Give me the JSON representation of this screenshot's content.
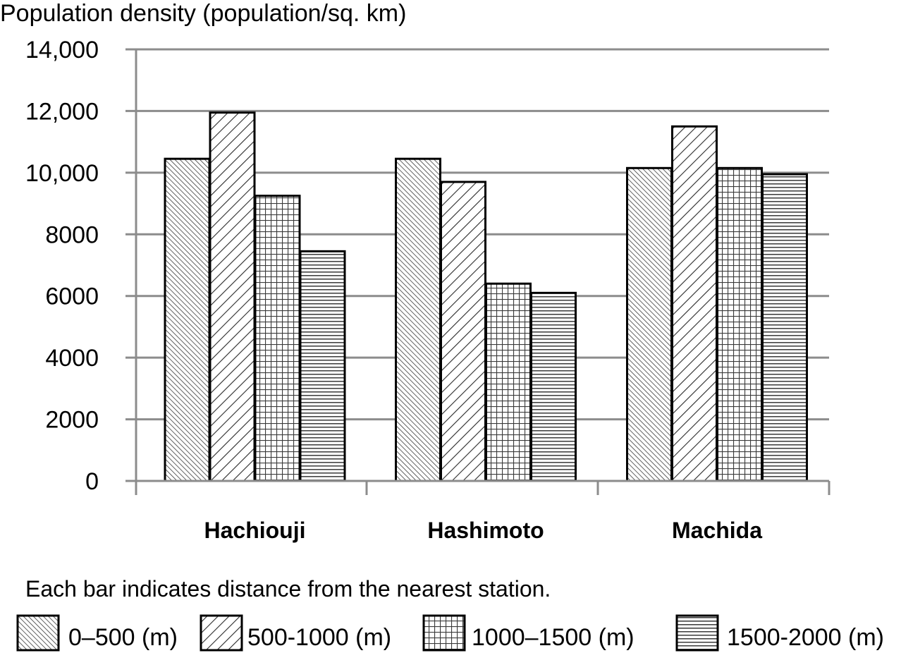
{
  "chart_data": {
    "type": "bar",
    "ylabel": "Population density (population/sq. km)",
    "xlabel": "",
    "categories": [
      "Hachiouji",
      "Hashimoto",
      "Machida"
    ],
    "series": [
      {
        "name": "0–500 (m)",
        "pattern": "fine-diagonal",
        "values": [
          10450,
          10450,
          10150
        ]
      },
      {
        "name": "500-1000 (m)",
        "pattern": "wide-diagonal",
        "values": [
          11950,
          9700,
          11500
        ]
      },
      {
        "name": "1000–1500 (m)",
        "pattern": "grid",
        "values": [
          9250,
          6400,
          10150
        ]
      },
      {
        "name": "1500-2000 (m)",
        "pattern": "horizontal",
        "values": [
          7450,
          6100,
          9950
        ]
      }
    ],
    "ylim": [
      0,
      14000
    ],
    "yticks": [
      {
        "value": 0,
        "label": "0"
      },
      {
        "value": 2000,
        "label": "2000"
      },
      {
        "value": 4000,
        "label": "4000"
      },
      {
        "value": 6000,
        "label": "6000"
      },
      {
        "value": 8000,
        "label": "8000"
      },
      {
        "value": 10000,
        "label": "10,000"
      },
      {
        "value": 12000,
        "label": "12,000"
      },
      {
        "value": 14000,
        "label": "14,000"
      }
    ],
    "grid": true,
    "legend_note": "Each bar indicates distance from the nearest station.",
    "legend_placement": "bottom",
    "colors": {
      "bar_fill": "#ffffff",
      "bar_stroke": "#000000",
      "pattern_ink": "#333333",
      "grid": "#8c8c8c",
      "axis": "#8c8c8c"
    }
  }
}
